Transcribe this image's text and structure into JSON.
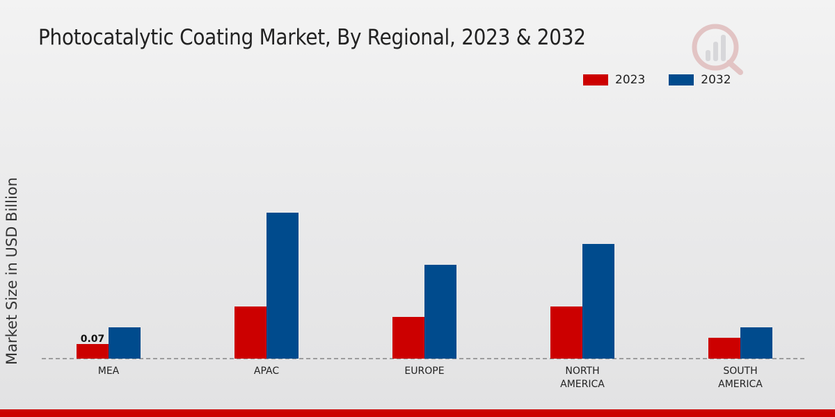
{
  "chart_data": {
    "type": "bar",
    "title": "Photocatalytic Coating Market, By Regional, 2023 & 2032",
    "xlabel": "",
    "ylabel": "Market Size in USD Billion",
    "categories": [
      [
        "MEA"
      ],
      [
        "APAC"
      ],
      [
        "EUROPE"
      ],
      [
        "NORTH",
        "AMERICA"
      ],
      [
        "SOUTH",
        "AMERICA"
      ]
    ],
    "series": [
      {
        "name": "2023",
        "color": "#cc0000",
        "values": [
          0.07,
          0.25,
          0.2,
          0.25,
          0.1
        ]
      },
      {
        "name": "2032",
        "color": "#004b8d",
        "values": [
          0.15,
          0.7,
          0.45,
          0.55,
          0.15
        ]
      }
    ],
    "data_labels": [
      {
        "series": 0,
        "index": 0,
        "text": "0.07"
      }
    ],
    "ylim": [
      0,
      0.9
    ],
    "legend_position": "top-right",
    "grid": false
  },
  "brand": {
    "accent": "#cc0000"
  }
}
